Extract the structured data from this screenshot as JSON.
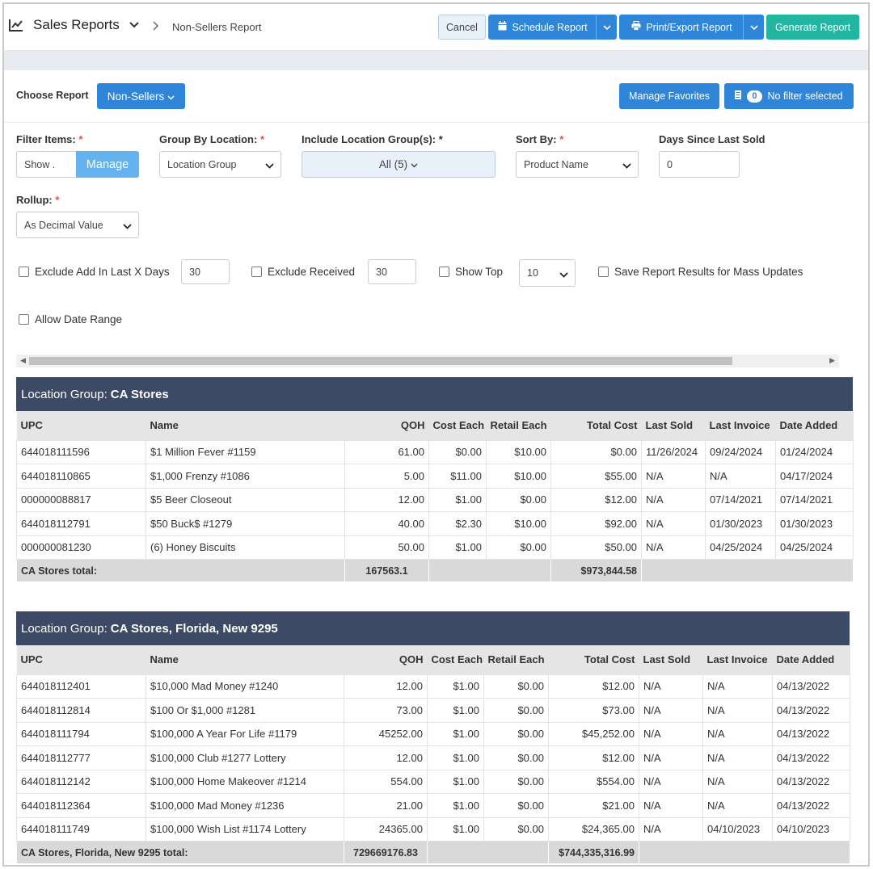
{
  "header": {
    "app_title": "Sales Reports",
    "breadcrumb": "Non-Sellers Report",
    "cancel_label": "Cancel",
    "schedule_label": "Schedule Report",
    "print_label": "Print/Export Report",
    "generate_label": "Generate Report"
  },
  "controls": {
    "choose_report_label": "Choose Report",
    "report_selected": "Non-Sellers",
    "manage_favorites_label": "Manage Favorites",
    "filter_count": "0",
    "filter_label": "No filter selected",
    "filter_items_label": "Filter Items:",
    "filter_items_value": "Show .",
    "manage_label": "Manage",
    "group_by_label": "Group By Location:",
    "group_by_value": "Location Group",
    "include_groups_label": "Include Location Group(s):",
    "include_groups_value": "All (5)",
    "sort_by_label": "Sort By:",
    "sort_by_value": "Product Name",
    "days_since_label": "Days Since Last Sold",
    "days_since_value": "0",
    "rollup_label": "Rollup:",
    "rollup_value": "As Decimal Value",
    "required_mark": "*",
    "exclude_add_label": "Exclude Add In Last X Days",
    "exclude_add_value": "30",
    "exclude_received_label": "Exclude Received",
    "exclude_received_value": "30",
    "show_top_label": "Show Top",
    "show_top_value": "10",
    "save_results_label": "Save Report Results for Mass Updates",
    "allow_date_range_label": "Allow Date Range"
  },
  "columns": [
    "UPC",
    "Name",
    "QOH",
    "Cost Each",
    "Retail Each",
    "Total Cost",
    "Last Sold",
    "Last Invoice",
    "Date Added"
  ],
  "groups": [
    {
      "prefix": "Location Group:",
      "name": "CA Stores",
      "rows": [
        [
          "644018111596",
          "$1 Million Fever #1159",
          "61.00",
          "$0.00",
          "$10.00",
          "$0.00",
          "11/26/2024",
          "09/24/2024",
          "01/24/2024"
        ],
        [
          "644018110865",
          "$1,000 Frenzy #1086",
          "5.00",
          "$11.00",
          "$10.00",
          "$55.00",
          "N/A",
          "N/A",
          "04/17/2024"
        ],
        [
          "000000088817",
          "$5 Beer Closeout",
          "12.00",
          "$1.00",
          "$0.00",
          "$12.00",
          "N/A",
          "07/14/2021",
          "07/14/2021"
        ],
        [
          "644018112791",
          "$50 Buck$ #1279",
          "40.00",
          "$2.30",
          "$10.00",
          "$92.00",
          "N/A",
          "01/30/2023",
          "01/30/2023"
        ],
        [
          "000000081230",
          "(6) Honey Biscuits",
          "50.00",
          "$1.00",
          "$0.00",
          "$50.00",
          "N/A",
          "04/25/2024",
          "04/25/2024"
        ]
      ],
      "total_label": "CA Stores total:",
      "total_qoh": "167563.1",
      "total_cost": "$973,844.58"
    },
    {
      "prefix": "Location Group:",
      "name": "CA Stores, Florida, New 9295",
      "rows": [
        [
          "644018112401",
          "$10,000 Mad Money #1240",
          "12.00",
          "$1.00",
          "$0.00",
          "$12.00",
          "N/A",
          "N/A",
          "04/13/2022"
        ],
        [
          "644018112814",
          "$100 Or $1,000 #1281",
          "73.00",
          "$1.00",
          "$0.00",
          "$73.00",
          "N/A",
          "N/A",
          "04/13/2022"
        ],
        [
          "644018111794",
          "$100,000 A Year For Life #1179",
          "45252.00",
          "$1.00",
          "$0.00",
          "$45,252.00",
          "N/A",
          "N/A",
          "04/13/2022"
        ],
        [
          "644018112777",
          "$100,000 Club #1277 Lottery",
          "12.00",
          "$1.00",
          "$0.00",
          "$12.00",
          "N/A",
          "N/A",
          "04/13/2022"
        ],
        [
          "644018112142",
          "$100,000 Home Makeover #1214",
          "554.00",
          "$1.00",
          "$0.00",
          "$554.00",
          "N/A",
          "N/A",
          "04/13/2022"
        ],
        [
          "644018112364",
          "$100,000 Mad Money #1236",
          "21.00",
          "$1.00",
          "$0.00",
          "$21.00",
          "N/A",
          "N/A",
          "04/13/2022"
        ],
        [
          "644018111749",
          "$100,000 Wish List #1174 Lottery",
          "24365.00",
          "$1.00",
          "$0.00",
          "$24,365.00",
          "N/A",
          "04/10/2023",
          "04/10/2023"
        ]
      ],
      "total_label": "CA Stores, Florida, New 9295 total:",
      "total_qoh": "729669176.83",
      "total_cost": "$744,335,316.99"
    }
  ]
}
